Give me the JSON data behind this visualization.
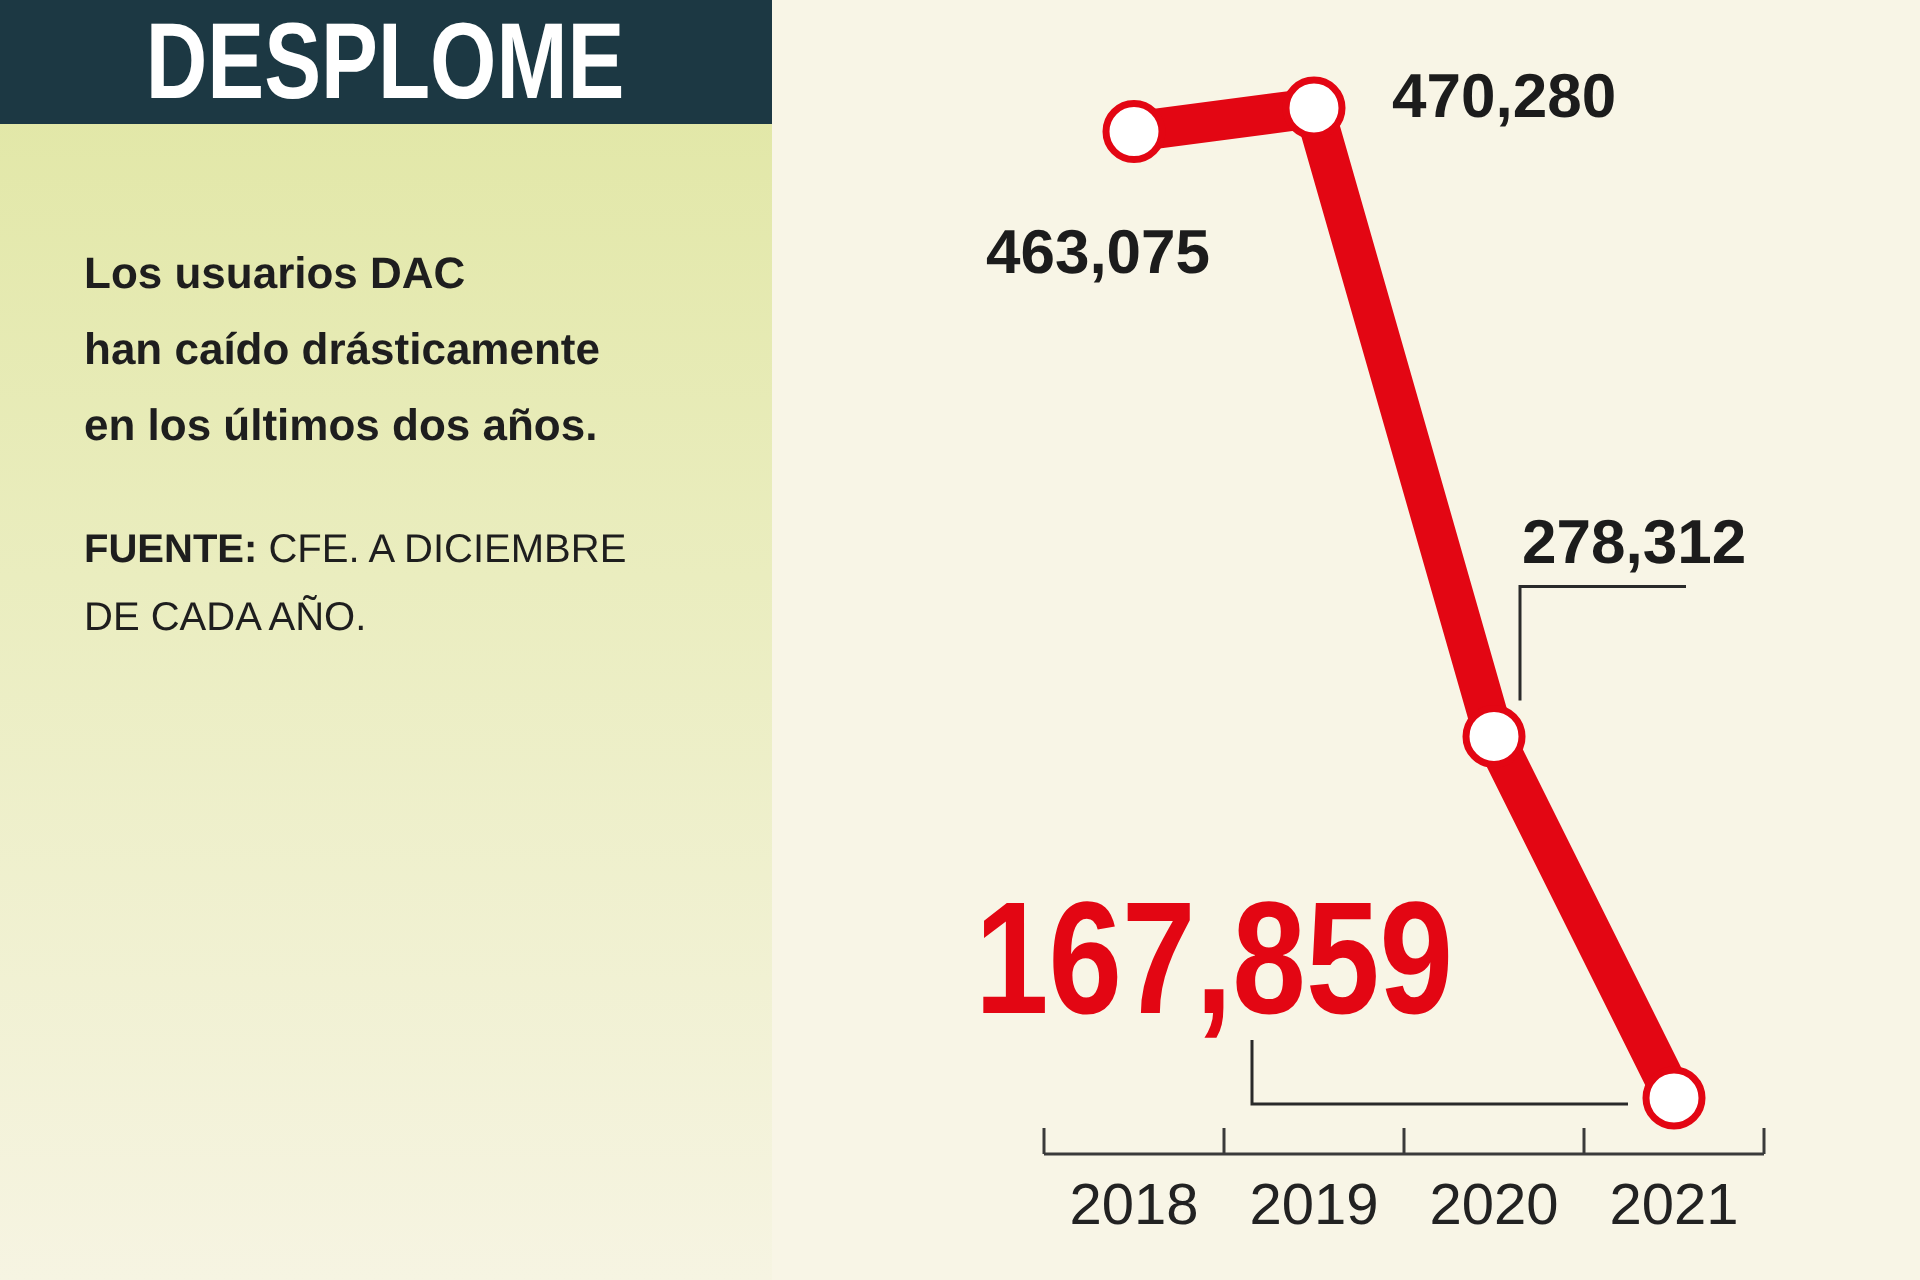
{
  "chart_data": {
    "type": "line",
    "title": "DESPLOME",
    "subtitle": "Los usuarios DAC\nhan caído drásticamente\nen los últimos dos años.",
    "annotations": [
      "FUENTE: CFE. A DICIEMBRE DE CADA AÑO."
    ],
    "categories": [
      "2018",
      "2019",
      "2020",
      "2021"
    ],
    "values": [
      463075,
      470280,
      278312,
      167859
    ],
    "color": "#e30613",
    "value_labels": [
      "463,075",
      "470,280",
      "278,312",
      "167,859"
    ],
    "marker": "circle"
  }
}
